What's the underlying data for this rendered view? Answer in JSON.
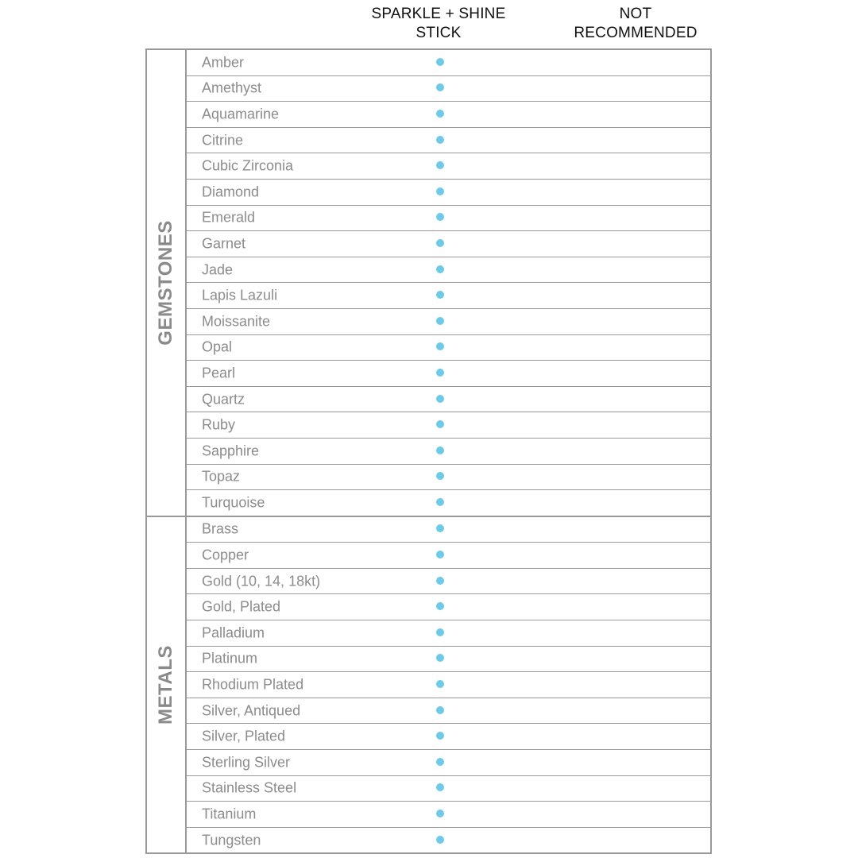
{
  "columns": {
    "sparkle": [
      "SPARKLE + SHINE",
      "STICK"
    ],
    "not_recommended": [
      "NOT",
      "RECOMMENDED"
    ]
  },
  "colors": {
    "dot": "#6ccaea",
    "border": "#999999",
    "text": "#8c8c8c"
  },
  "groups": [
    {
      "label": "GEMSTONES",
      "items": [
        {
          "name": "Amber",
          "sparkle": true
        },
        {
          "name": "Amethyst",
          "sparkle": true
        },
        {
          "name": "Aquamarine",
          "sparkle": true
        },
        {
          "name": "Citrine",
          "sparkle": true
        },
        {
          "name": "Cubic Zirconia",
          "sparkle": true
        },
        {
          "name": "Diamond",
          "sparkle": true
        },
        {
          "name": "Emerald",
          "sparkle": true
        },
        {
          "name": "Garnet",
          "sparkle": true
        },
        {
          "name": "Jade",
          "sparkle": true
        },
        {
          "name": "Lapis Lazuli",
          "sparkle": true
        },
        {
          "name": "Moissanite",
          "sparkle": true
        },
        {
          "name": "Opal",
          "sparkle": true
        },
        {
          "name": "Pearl",
          "sparkle": true
        },
        {
          "name": "Quartz",
          "sparkle": true
        },
        {
          "name": "Ruby",
          "sparkle": true
        },
        {
          "name": "Sapphire",
          "sparkle": true
        },
        {
          "name": "Topaz",
          "sparkle": true
        },
        {
          "name": "Turquoise",
          "sparkle": true
        }
      ]
    },
    {
      "label": "METALS",
      "items": [
        {
          "name": "Brass",
          "sparkle": true
        },
        {
          "name": "Copper",
          "sparkle": true
        },
        {
          "name": "Gold (10, 14, 18kt)",
          "sparkle": true
        },
        {
          "name": "Gold, Plated",
          "sparkle": true
        },
        {
          "name": "Palladium",
          "sparkle": true
        },
        {
          "name": "Platinum",
          "sparkle": true
        },
        {
          "name": "Rhodium Plated",
          "sparkle": true
        },
        {
          "name": "Silver, Antiqued",
          "sparkle": true
        },
        {
          "name": "Silver, Plated",
          "sparkle": true
        },
        {
          "name": "Sterling Silver",
          "sparkle": true
        },
        {
          "name": "Stainless Steel",
          "sparkle": true
        },
        {
          "name": "Titanium",
          "sparkle": true
        },
        {
          "name": "Tungsten",
          "sparkle": true
        }
      ]
    }
  ]
}
